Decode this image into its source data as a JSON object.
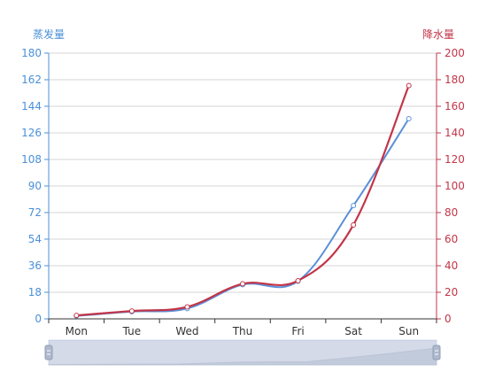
{
  "chart_data": {
    "type": "line",
    "categories": [
      "Mon",
      "Tue",
      "Wed",
      "Thu",
      "Fri",
      "Sat",
      "Sun"
    ],
    "y_axes": [
      {
        "name": "蒸发量",
        "side": "left",
        "min": 0,
        "max": 180,
        "ticks": [
          "0",
          "18",
          "36",
          "54",
          "72",
          "90",
          "108",
          "126",
          "144",
          "162",
          "180"
        ],
        "color": "#4a90d9"
      },
      {
        "name": "降水量",
        "side": "right",
        "min": 0,
        "max": 200,
        "ticks": [
          "0",
          "20",
          "40",
          "60",
          "80",
          "100",
          "120",
          "140",
          "160",
          "180",
          "200"
        ],
        "color": "#c23548"
      }
    ],
    "series": [
      {
        "axis": 0,
        "color": "#5a90d8",
        "values": [
          2.0,
          4.9,
          7.0,
          23.2,
          25.6,
          76.7,
          135.6
        ]
      },
      {
        "axis": 1,
        "color": "#c23548",
        "values": [
          2.6,
          5.9,
          9.0,
          26.4,
          28.7,
          70.7,
          175.6
        ]
      }
    ],
    "grid": true,
    "legend": "none",
    "data_zoom": {
      "start": 0,
      "end": 100
    }
  }
}
